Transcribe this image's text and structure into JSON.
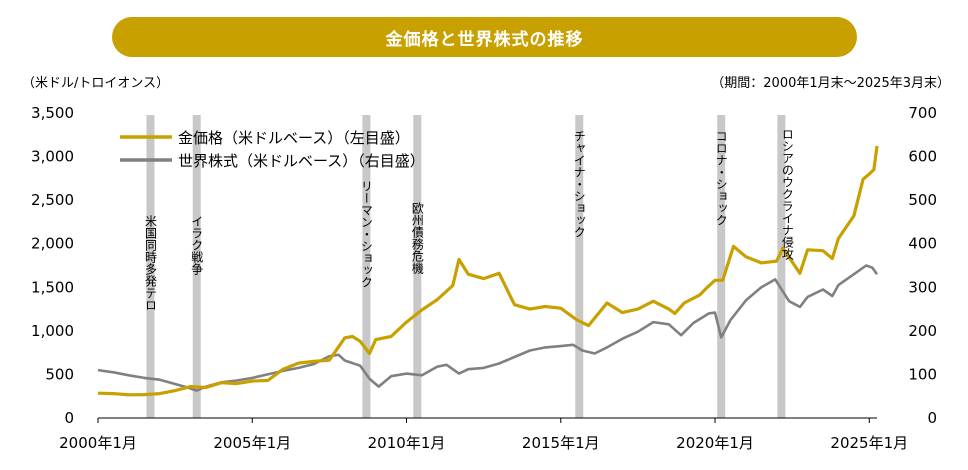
{
  "chart_data": {
    "type": "line",
    "title": "金価格と世界株式の推移",
    "y_left_label": "（米ドル/トロイオンス）",
    "period_note": "（期間：2000年1月末～2025年3月末）",
    "ylim_left": [
      0,
      3500
    ],
    "ylim_right": [
      0,
      700
    ],
    "y_left_ticks": [
      "0",
      "500",
      "1,000",
      "1,500",
      "2,000",
      "2,500",
      "3,000",
      "3,500"
    ],
    "y_right_ticks": [
      "0",
      "100",
      "200",
      "300",
      "400",
      "500",
      "600",
      "700"
    ],
    "x_ticks": [
      "2000年1月",
      "2005年1月",
      "2010年1月",
      "2015年1月",
      "2020年1月",
      "2025年1月"
    ],
    "x_range": [
      2000.0,
      2025.25
    ],
    "grid": false,
    "legend_position": "top-left",
    "series": [
      {
        "name": "金価格（米ドルベース）（左目盛）",
        "color": "#C8A000",
        "axis": "left",
        "points": [
          [
            2000.0,
            285
          ],
          [
            2000.5,
            280
          ],
          [
            2001.0,
            266
          ],
          [
            2001.5,
            268
          ],
          [
            2002.0,
            280
          ],
          [
            2002.5,
            315
          ],
          [
            2003.0,
            360
          ],
          [
            2003.5,
            350
          ],
          [
            2004.0,
            405
          ],
          [
            2004.5,
            395
          ],
          [
            2005.0,
            425
          ],
          [
            2005.5,
            430
          ],
          [
            2006.0,
            560
          ],
          [
            2006.5,
            630
          ],
          [
            2007.0,
            650
          ],
          [
            2007.5,
            665
          ],
          [
            2008.0,
            920
          ],
          [
            2008.25,
            935
          ],
          [
            2008.5,
            880
          ],
          [
            2008.8,
            740
          ],
          [
            2009.0,
            900
          ],
          [
            2009.5,
            935
          ],
          [
            2010.0,
            1100
          ],
          [
            2010.5,
            1240
          ],
          [
            2011.0,
            1360
          ],
          [
            2011.5,
            1520
          ],
          [
            2011.7,
            1820
          ],
          [
            2012.0,
            1650
          ],
          [
            2012.5,
            1600
          ],
          [
            2013.0,
            1660
          ],
          [
            2013.5,
            1300
          ],
          [
            2014.0,
            1250
          ],
          [
            2014.5,
            1280
          ],
          [
            2015.0,
            1260
          ],
          [
            2015.5,
            1130
          ],
          [
            2015.9,
            1060
          ],
          [
            2016.5,
            1320
          ],
          [
            2017.0,
            1210
          ],
          [
            2017.5,
            1250
          ],
          [
            2018.0,
            1340
          ],
          [
            2018.5,
            1250
          ],
          [
            2018.7,
            1200
          ],
          [
            2019.0,
            1320
          ],
          [
            2019.5,
            1410
          ],
          [
            2019.75,
            1500
          ],
          [
            2020.0,
            1580
          ],
          [
            2020.25,
            1580
          ],
          [
            2020.6,
            1970
          ],
          [
            2021.0,
            1850
          ],
          [
            2021.5,
            1780
          ],
          [
            2022.0,
            1800
          ],
          [
            2022.2,
            1950
          ],
          [
            2022.75,
            1660
          ],
          [
            2023.0,
            1930
          ],
          [
            2023.5,
            1920
          ],
          [
            2023.8,
            1830
          ],
          [
            2024.0,
            2060
          ],
          [
            2024.5,
            2320
          ],
          [
            2024.8,
            2740
          ],
          [
            2025.0,
            2800
          ],
          [
            2025.15,
            2850
          ],
          [
            2025.25,
            3120
          ]
        ]
      },
      {
        "name": "世界株式（米ドルベース）（右目盛）",
        "color": "#808080",
        "axis": "right",
        "points": [
          [
            2000.0,
            110
          ],
          [
            2000.5,
            105
          ],
          [
            2001.0,
            98
          ],
          [
            2001.5,
            92
          ],
          [
            2002.0,
            88
          ],
          [
            2002.5,
            78
          ],
          [
            2002.9,
            70
          ],
          [
            2003.2,
            63
          ],
          [
            2003.5,
            72
          ],
          [
            2004.0,
            82
          ],
          [
            2004.5,
            86
          ],
          [
            2005.0,
            92
          ],
          [
            2005.5,
            100
          ],
          [
            2006.0,
            108
          ],
          [
            2006.5,
            115
          ],
          [
            2007.0,
            124
          ],
          [
            2007.5,
            142
          ],
          [
            2007.8,
            145
          ],
          [
            2008.0,
            132
          ],
          [
            2008.5,
            120
          ],
          [
            2008.8,
            90
          ],
          [
            2009.1,
            72
          ],
          [
            2009.5,
            96
          ],
          [
            2010.0,
            102
          ],
          [
            2010.5,
            98
          ],
          [
            2011.0,
            118
          ],
          [
            2011.3,
            122
          ],
          [
            2011.7,
            102
          ],
          [
            2012.0,
            112
          ],
          [
            2012.5,
            115
          ],
          [
            2013.0,
            125
          ],
          [
            2013.5,
            140
          ],
          [
            2014.0,
            155
          ],
          [
            2014.5,
            162
          ],
          [
            2015.0,
            165
          ],
          [
            2015.4,
            168
          ],
          [
            2015.7,
            155
          ],
          [
            2016.1,
            148
          ],
          [
            2016.5,
            162
          ],
          [
            2017.0,
            182
          ],
          [
            2017.5,
            198
          ],
          [
            2018.0,
            220
          ],
          [
            2018.5,
            215
          ],
          [
            2018.9,
            190
          ],
          [
            2019.3,
            218
          ],
          [
            2019.8,
            240
          ],
          [
            2020.0,
            242
          ],
          [
            2020.2,
            185
          ],
          [
            2020.5,
            225
          ],
          [
            2021.0,
            270
          ],
          [
            2021.5,
            300
          ],
          [
            2021.95,
            318
          ],
          [
            2022.4,
            268
          ],
          [
            2022.75,
            255
          ],
          [
            2023.0,
            278
          ],
          [
            2023.5,
            295
          ],
          [
            2023.8,
            280
          ],
          [
            2024.0,
            305
          ],
          [
            2024.5,
            330
          ],
          [
            2024.9,
            350
          ],
          [
            2025.1,
            345
          ],
          [
            2025.25,
            330
          ]
        ]
      }
    ],
    "events": [
      {
        "date": 2001.7,
        "label": "米国同時多発テロ"
      },
      {
        "date": 2003.2,
        "label": "イラク戦争"
      },
      {
        "date": 2008.7,
        "label": "リーマン・ショック"
      },
      {
        "date": 2010.35,
        "label": "欧州債務危機"
      },
      {
        "date": 2015.6,
        "label": "チャイナ・ショック"
      },
      {
        "date": 2020.2,
        "label": "コロナ・ショック"
      },
      {
        "date": 2022.15,
        "label": "ロシアのウクライナ侵攻"
      }
    ],
    "event_bar_color": "#C8C8C8"
  }
}
